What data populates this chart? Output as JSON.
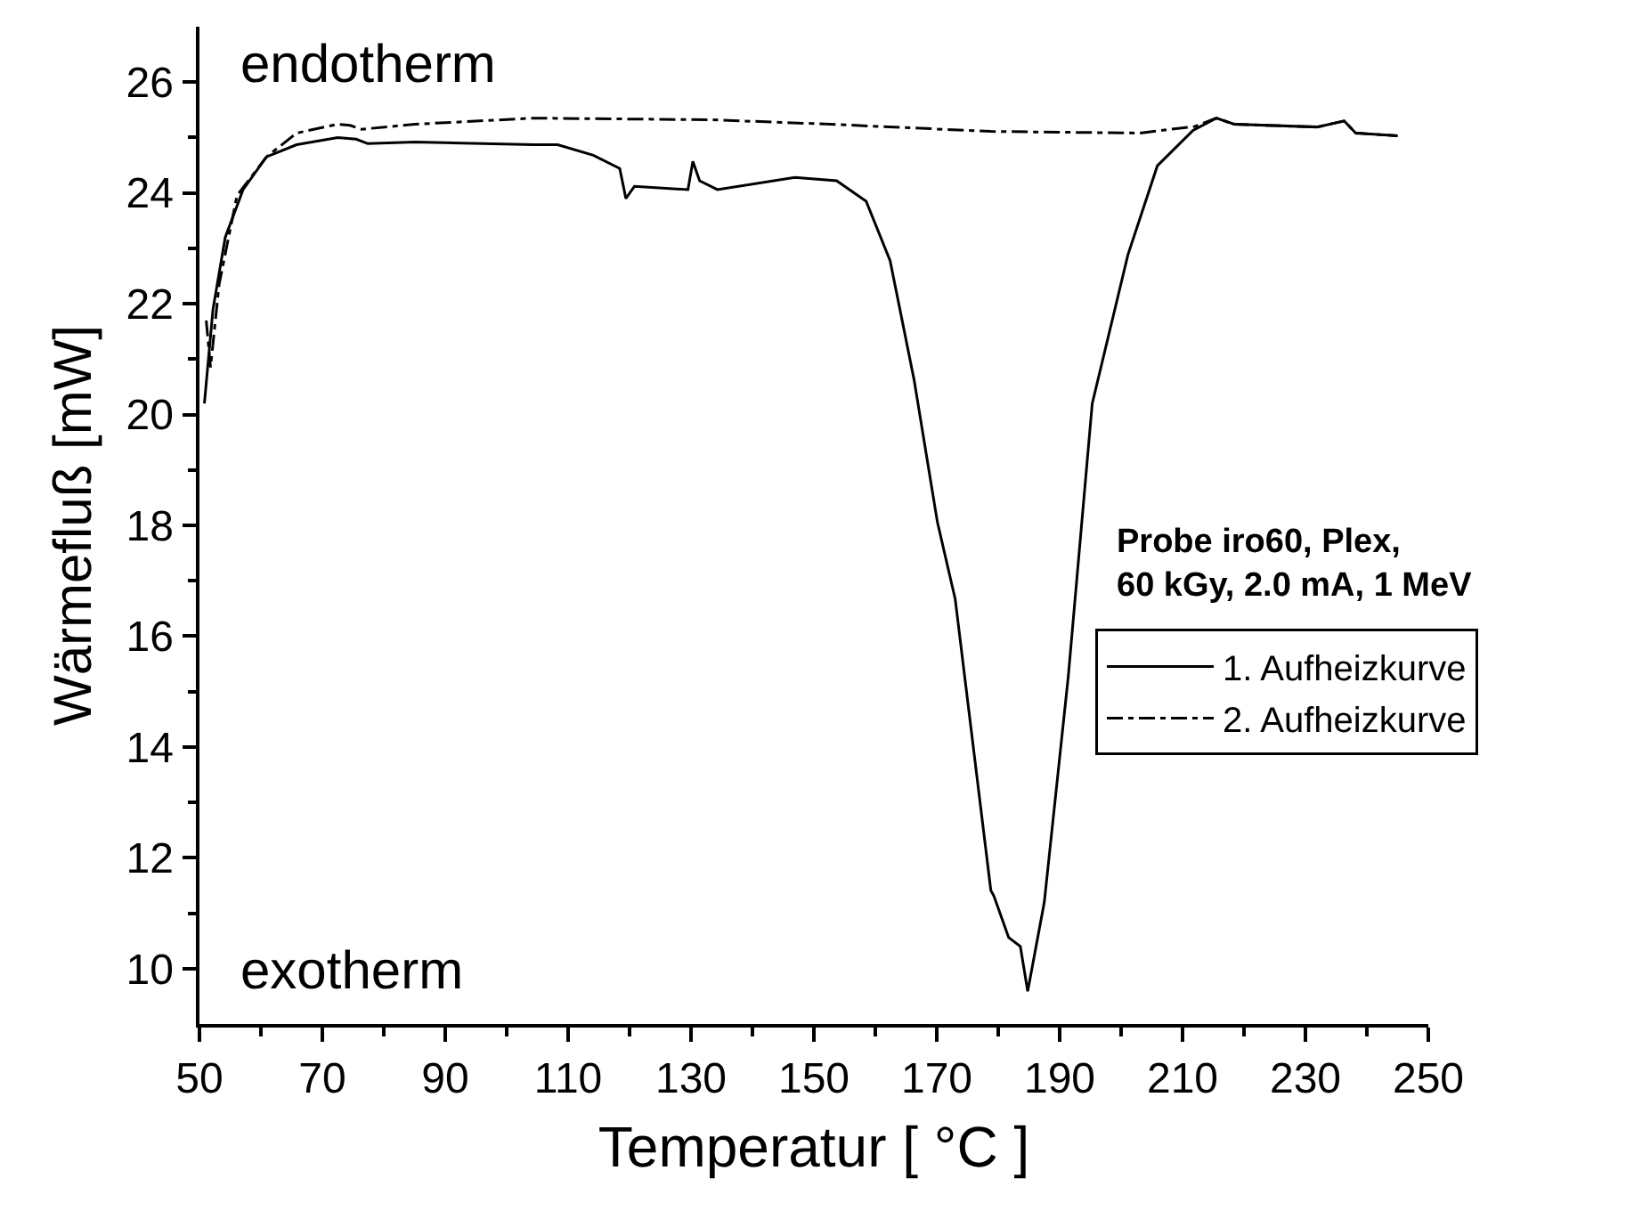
{
  "chart_data": {
    "type": "line",
    "xlabel": "Temperatur [ °C ]",
    "ylabel": "Wärmefluß [mW]",
    "legend_title": "Probe iro60, Plex,\n60 kGy, 2.0 mA, 1 MeV",
    "annotations": [
      "endotherm",
      "exotherm"
    ],
    "xlim": [
      50,
      250
    ],
    "xticks": [
      50,
      70,
      90,
      110,
      130,
      150,
      170,
      190,
      210,
      230,
      250
    ],
    "ylim": [
      9,
      27
    ],
    "yticks": [
      10,
      12,
      14,
      16,
      18,
      20,
      22,
      24,
      26
    ],
    "grid": false,
    "legend": "right",
    "marker": "none",
    "series": [
      {
        "name": "1. Aufheizkurve",
        "color": "#000000",
        "line_style": "solid",
        "x": [
          50.8,
          52.2,
          54.2,
          57.1,
          60.9,
          65.8,
          72.5,
          75.5,
          77.4,
          85.1,
          104.4,
          108.3,
          114.1,
          118.4,
          119.4,
          120.8,
          129.5,
          130.3,
          131.4,
          134.3,
          146.9,
          153.7,
          158.5,
          162.4,
          166.3,
          170.1,
          172.1,
          173,
          178.8,
          179.3,
          181.7,
          183.6,
          184.8,
          187.5,
          191.4,
          195.3,
          201.1,
          205.9,
          211.7,
          215.5,
          218.4,
          231.9,
          236.3,
          238.2,
          245
        ],
        "values": [
          20.2,
          21.9,
          23.2,
          24.06,
          24.65,
          24.87,
          25.0,
          24.97,
          24.89,
          24.92,
          24.87,
          24.87,
          24.68,
          24.44,
          23.9,
          24.12,
          24.06,
          24.57,
          24.22,
          24.06,
          24.28,
          24.22,
          23.85,
          22.78,
          20.63,
          18.06,
          17.1,
          16.67,
          11.41,
          11.31,
          10.56,
          10.4,
          9.59,
          11.2,
          15.27,
          20.2,
          22.88,
          24.49,
          25.13,
          25.35,
          25.24,
          25.19,
          25.3,
          25.08,
          25.03
        ]
      },
      {
        "name": "2. Aufheizkurve",
        "color": "#000000",
        "line_style": "dashdot",
        "x": [
          51.1,
          51.8,
          53.2,
          56.1,
          60.9,
          65.8,
          72.5,
          74.5,
          76.4,
          85.1,
          104.4,
          133.4,
          152.7,
          178.8,
          203,
          212,
          215.5,
          218.4,
          231.9,
          236.3,
          238.2,
          245
        ],
        "values": [
          21.7,
          20.85,
          22.35,
          23.95,
          24.65,
          25.08,
          25.24,
          25.22,
          25.15,
          25.24,
          25.35,
          25.32,
          25.24,
          25.11,
          25.08,
          25.2,
          25.35,
          25.24,
          25.19,
          25.3,
          25.08,
          25.03
        ]
      }
    ]
  }
}
